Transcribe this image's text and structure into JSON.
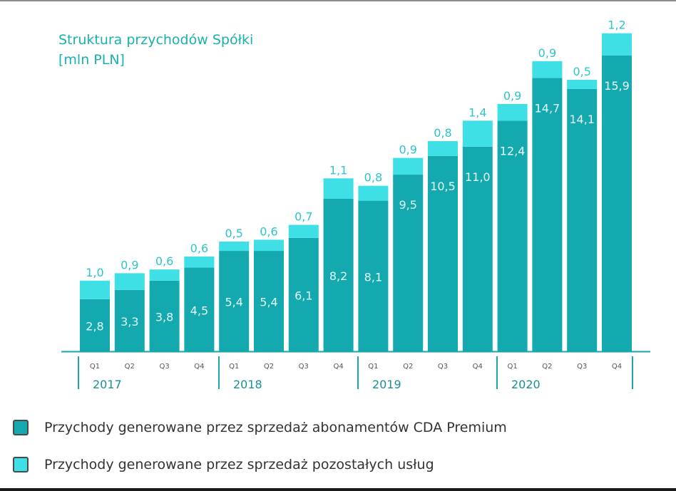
{
  "colors": {
    "primary": "#13a9ae",
    "secondary": "#3ee0e6",
    "label_inside": "#e6fafb",
    "label_top": "#2cc5cc",
    "axis": "#1aa6ab",
    "title": "#1ab0b0"
  },
  "chart_data": {
    "type": "bar",
    "stacked": true,
    "title": "Struktura przychodów Spółki",
    "subtitle": "[mln PLN]",
    "categories": [
      "Q1",
      "Q2",
      "Q3",
      "Q4",
      "Q1",
      "Q2",
      "Q3",
      "Q4",
      "Q1",
      "Q2",
      "Q3",
      "Q4",
      "Q1",
      "Q2",
      "Q3",
      "Q4"
    ],
    "groups": [
      "2017",
      "2018",
      "2019",
      "2020"
    ],
    "series": [
      {
        "name": "Przychody generowane przez sprzedaż abonamentów CDA Premium",
        "values": [
          2.8,
          3.3,
          3.8,
          4.5,
          5.4,
          5.4,
          6.1,
          8.2,
          8.1,
          9.5,
          10.5,
          11.0,
          12.4,
          14.7,
          14.1,
          15.9
        ],
        "labels": [
          "2,8",
          "3,3",
          "3,8",
          "4,5",
          "5,4",
          "5,4",
          "6,1",
          "8,2",
          "8,1",
          "9,5",
          "10,5",
          "11,0",
          "12,4",
          "14,7",
          "14,1",
          "15,9"
        ]
      },
      {
        "name": "Przychody generowane przez sprzedaż pozostałych usług",
        "values": [
          1.0,
          0.9,
          0.6,
          0.6,
          0.5,
          0.6,
          0.7,
          1.1,
          0.8,
          0.9,
          0.8,
          1.4,
          0.9,
          0.9,
          0.5,
          1.2
        ],
        "labels": [
          "1,0",
          "0,9",
          "0,6",
          "0,6",
          "0,5",
          "0,6",
          "0,7",
          "1,1",
          "0,8",
          "0,9",
          "0,8",
          "1,4",
          "0,9",
          "0,9",
          "0,5",
          "1,2"
        ]
      }
    ],
    "ylim": [
      0,
      17.5
    ],
    "grid": false,
    "legend_position": "bottom-left"
  }
}
